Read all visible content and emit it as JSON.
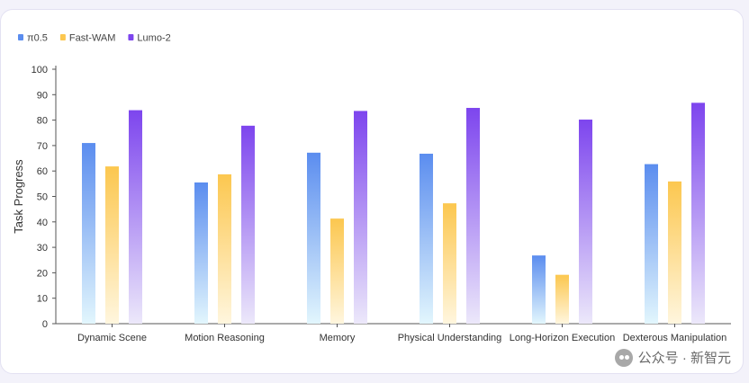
{
  "chart_data": {
    "type": "bar",
    "categories": [
      "Dynamic Scene",
      "Motion Reasoning",
      "Memory",
      "Physical Understanding",
      "Long-Horizon Execution",
      "Dexterous Manipulation"
    ],
    "series": [
      {
        "name": "π0.5",
        "values": [
          71,
          55.5,
          67.2,
          66.8,
          26.8,
          62.7
        ],
        "color_top": "#5b8def",
        "color_bottom": "#e2f6fd"
      },
      {
        "name": "Fast-WAM",
        "values": [
          61.8,
          58.7,
          41.3,
          47.3,
          19.2,
          55.9
        ],
        "color_top": "#fcc74f",
        "color_bottom": "#fff6de"
      },
      {
        "name": "Lumo-2",
        "values": [
          83.9,
          77.8,
          83.6,
          84.8,
          80.2,
          86.8
        ],
        "color_top": "#7d45ee",
        "color_bottom": "#ece8fa"
      }
    ],
    "ylabel": "Task Progress",
    "xlabel": "",
    "ylim": [
      0,
      100
    ],
    "yticks": [
      "0",
      "10",
      "20",
      "30",
      "40",
      "50",
      "60",
      "70",
      "80",
      "90",
      "100"
    ],
    "legend_position": "top-left",
    "grid": false
  },
  "watermark": {
    "text": "公众号 · 新智元",
    "icon": "wechat-icon"
  }
}
